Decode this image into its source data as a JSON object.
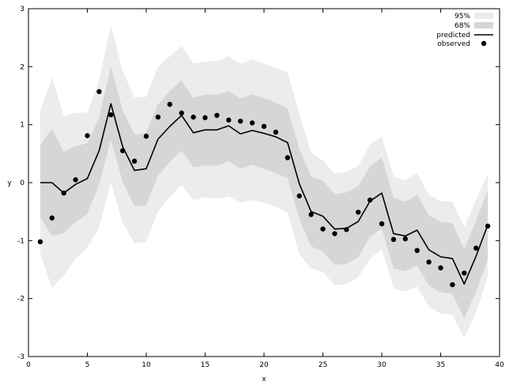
{
  "chart_data": {
    "type": "line",
    "xlabel": "x",
    "ylabel": "y",
    "xlim": [
      0,
      40
    ],
    "ylim": [
      -3,
      3
    ],
    "xticks": [
      0,
      5,
      10,
      15,
      20,
      25,
      30,
      35,
      40
    ],
    "yticks": [
      -3,
      -2,
      -1,
      0,
      1,
      2,
      3
    ],
    "grid": false,
    "legend_position": "top-right",
    "legend": [
      {
        "label": "95%",
        "kind": "band95"
      },
      {
        "label": "68%",
        "kind": "band68"
      },
      {
        "label": "predicted",
        "kind": "line"
      },
      {
        "label": "observed",
        "kind": "marker"
      }
    ],
    "colors": {
      "band95": "#ececec",
      "band68": "#d6d6d6",
      "predicted": "#000000",
      "observed": "#000000"
    },
    "x": [
      1,
      2,
      3,
      4,
      5,
      6,
      7,
      8,
      9,
      10,
      11,
      12,
      13,
      14,
      15,
      16,
      17,
      18,
      19,
      20,
      21,
      22,
      23,
      24,
      25,
      26,
      27,
      28,
      29,
      30,
      31,
      32,
      33,
      34,
      35,
      36,
      37,
      38,
      39
    ],
    "predicted": [
      0,
      0,
      -0.18,
      -0.03,
      0.07,
      0.55,
      1.36,
      0.62,
      0.21,
      0.24,
      0.75,
      0.97,
      1.16,
      0.86,
      0.91,
      0.91,
      0.98,
      0.84,
      0.9,
      0.85,
      0.79,
      0.69,
      -0.02,
      -0.5,
      -0.58,
      -0.8,
      -0.79,
      -0.67,
      -0.32,
      -0.18,
      -0.88,
      -0.92,
      -0.82,
      -1.16,
      -1.28,
      -1.31,
      -1.75,
      -1.27,
      -0.73
    ],
    "band68_upper": [
      0.65,
      0.93,
      0.53,
      0.63,
      0.68,
      1.12,
      2.0,
      1.25,
      0.83,
      0.86,
      1.35,
      1.58,
      1.76,
      1.46,
      1.52,
      1.52,
      1.58,
      1.45,
      1.52,
      1.46,
      1.38,
      1.28,
      0.58,
      0.11,
      0.03,
      -0.2,
      -0.17,
      -0.06,
      0.28,
      0.43,
      -0.26,
      -0.33,
      -0.21,
      -0.56,
      -0.68,
      -0.7,
      -1.14,
      -0.66,
      -0.13
    ],
    "band68_lower": [
      -0.6,
      -0.92,
      -0.87,
      -0.68,
      -0.54,
      -0.03,
      0.74,
      0.01,
      -0.41,
      -0.39,
      0.12,
      0.36,
      0.55,
      0.26,
      0.3,
      0.29,
      0.37,
      0.24,
      0.31,
      0.24,
      0.16,
      0.08,
      -0.63,
      -1.1,
      -1.19,
      -1.42,
      -1.4,
      -1.29,
      -0.93,
      -0.79,
      -1.48,
      -1.53,
      -1.43,
      -1.78,
      -1.89,
      -1.92,
      -2.35,
      -1.88,
      -1.33
    ],
    "band95_upper": [
      1.23,
      1.82,
      1.15,
      1.2,
      1.21,
      1.76,
      2.72,
      1.92,
      1.47,
      1.48,
      2.0,
      2.18,
      2.36,
      2.05,
      2.09,
      2.1,
      2.18,
      2.05,
      2.12,
      2.05,
      1.98,
      1.9,
      1.19,
      0.52,
      0.38,
      0.16,
      0.19,
      0.28,
      0.66,
      0.8,
      0.1,
      0.04,
      0.16,
      -0.21,
      -0.32,
      -0.33,
      -0.77,
      -0.3,
      0.15
    ],
    "band95_lower": [
      -1.23,
      -1.82,
      -1.6,
      -1.31,
      -1.12,
      -0.77,
      0.0,
      -0.69,
      -1.05,
      -1.02,
      -0.5,
      -0.24,
      -0.04,
      -0.3,
      -0.25,
      -0.27,
      -0.24,
      -0.35,
      -0.3,
      -0.35,
      -0.42,
      -0.52,
      -1.24,
      -1.48,
      -1.54,
      -1.77,
      -1.75,
      -1.64,
      -1.31,
      -1.15,
      -1.82,
      -1.88,
      -1.79,
      -2.14,
      -2.26,
      -2.28,
      -2.68,
      -2.24,
      -1.62
    ],
    "observed": [
      -1.02,
      -0.61,
      -0.18,
      0.05,
      0.81,
      1.57,
      1.17,
      0.55,
      0.37,
      0.8,
      1.13,
      1.35,
      1.2,
      1.13,
      1.12,
      1.16,
      1.08,
      1.06,
      1.03,
      0.97,
      0.87,
      0.43,
      -0.23,
      -0.55,
      -0.8,
      -0.88,
      -0.81,
      -0.51,
      -0.3,
      -0.71,
      -0.98,
      -0.97,
      -1.17,
      -1.37,
      -1.47,
      -1.76,
      -1.56,
      -1.13,
      -0.75
    ]
  }
}
